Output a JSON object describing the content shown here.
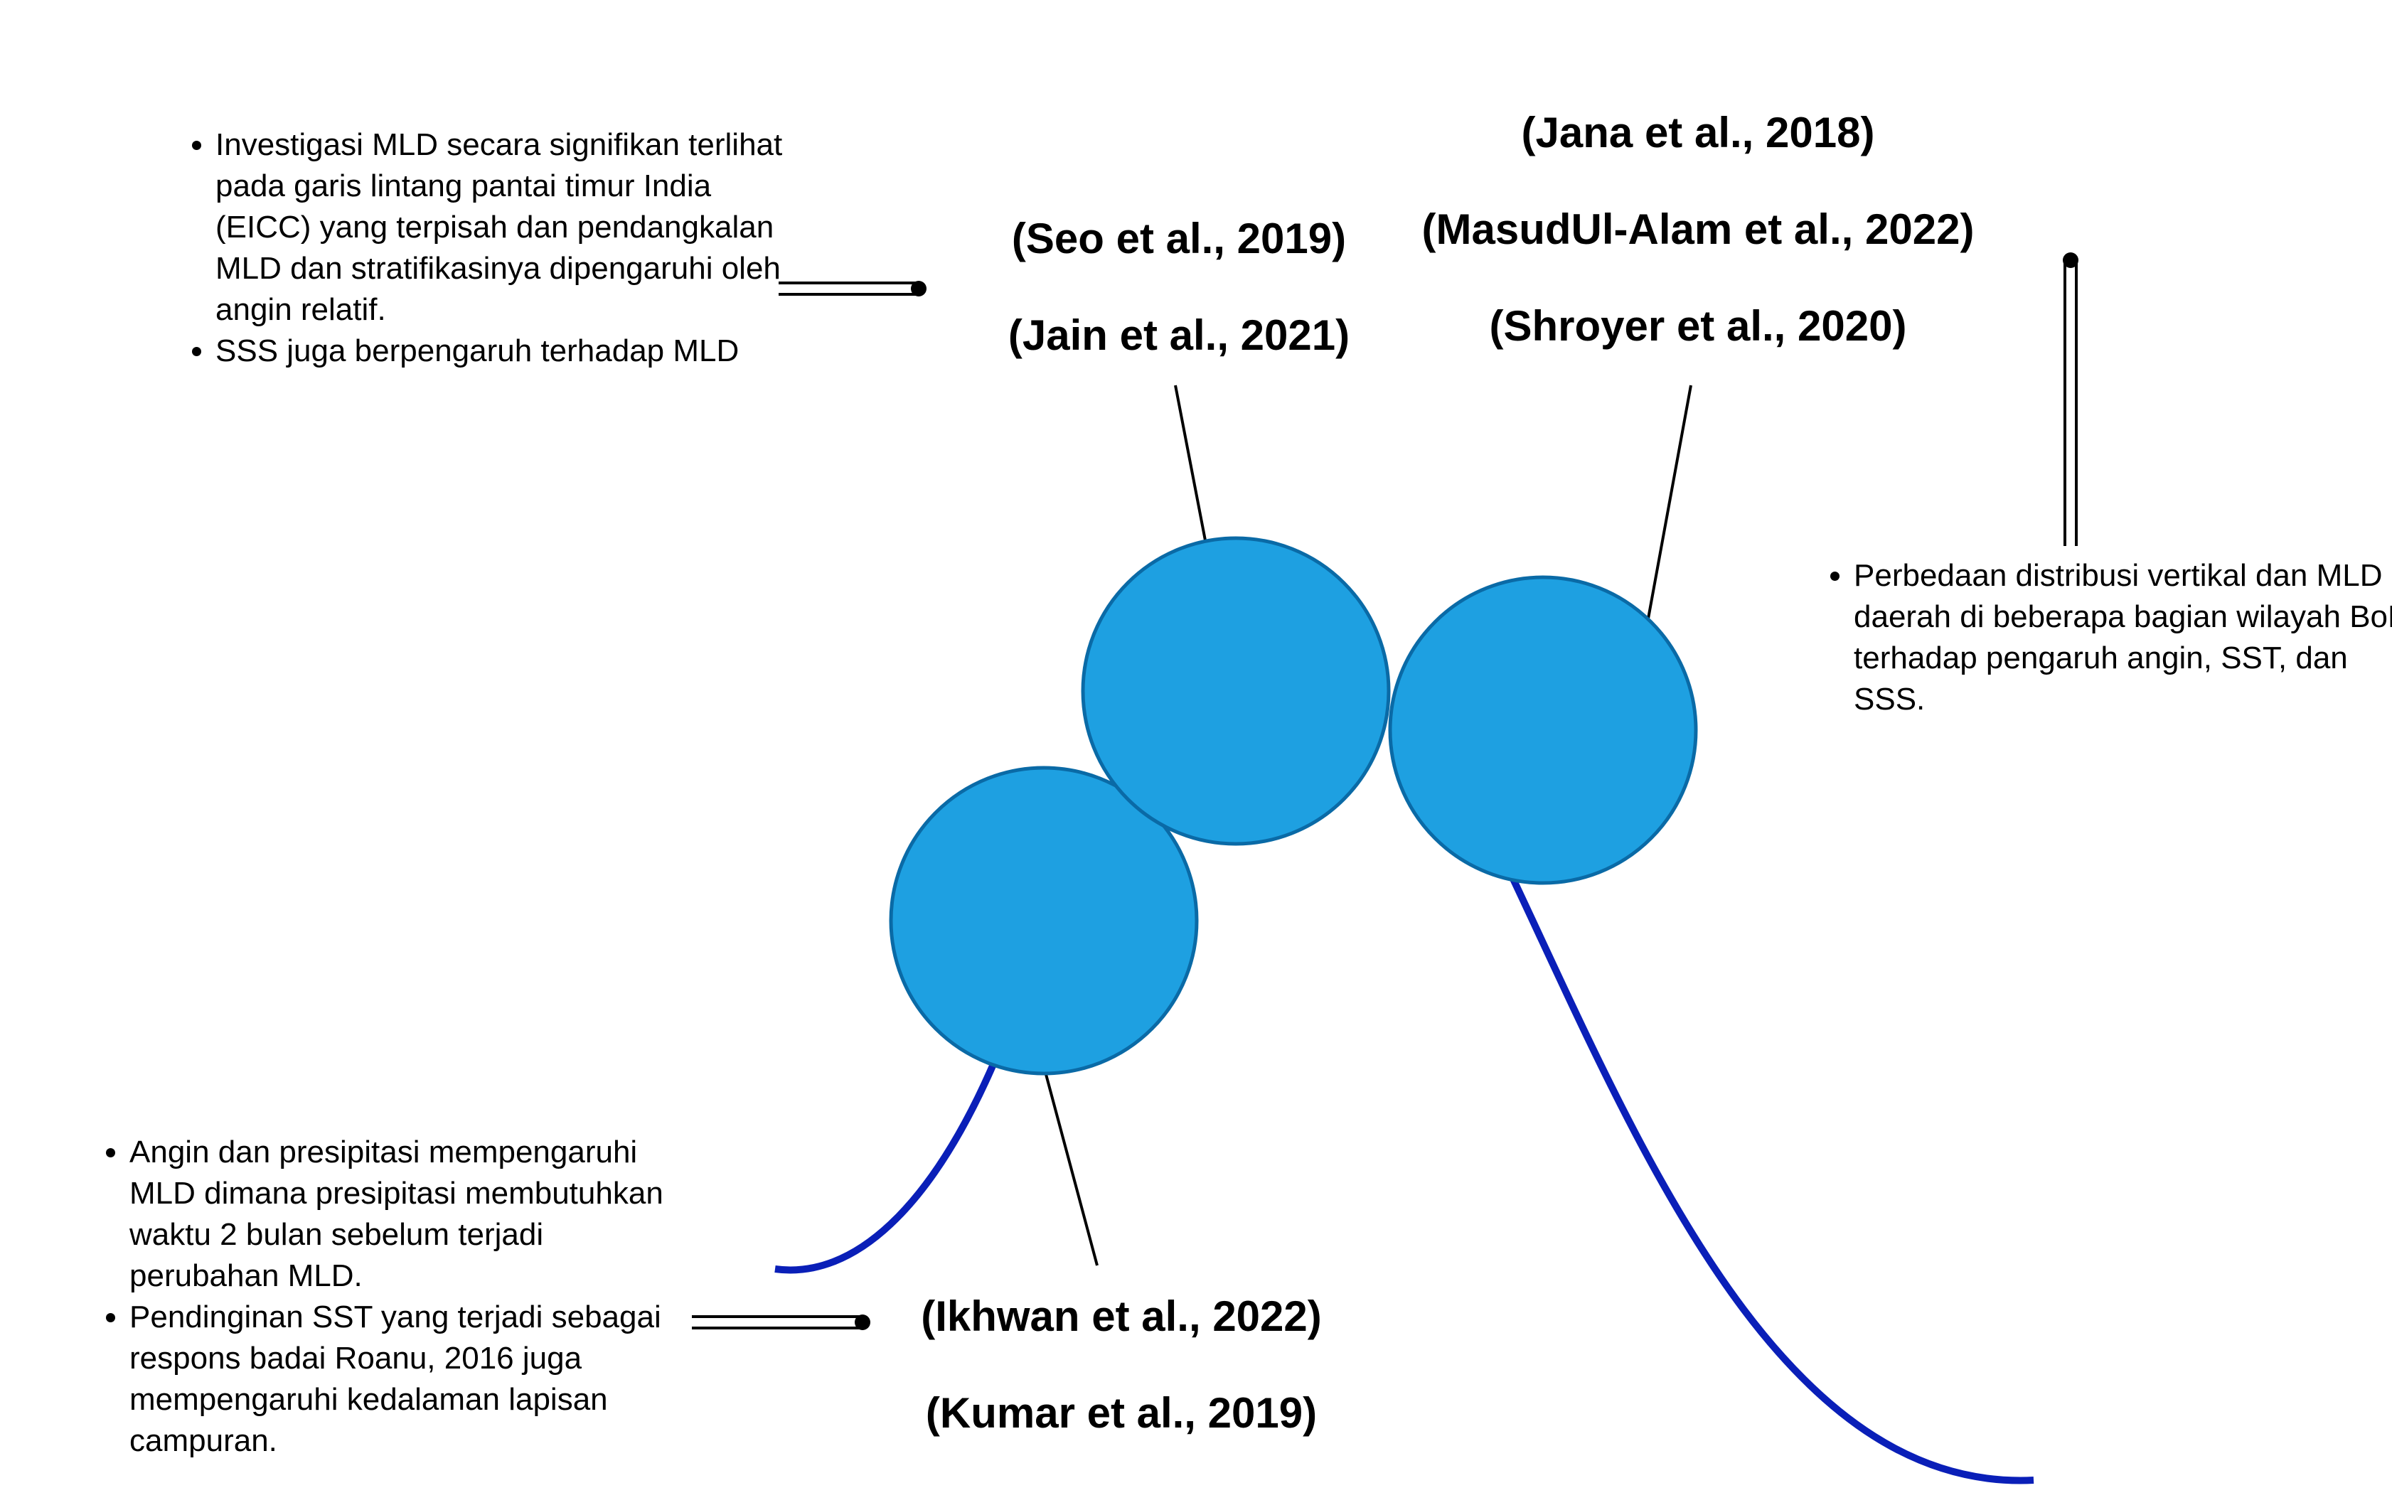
{
  "colors": {
    "circle_fill": "#1ea0e1",
    "circle_stroke": "#0a6aa6",
    "curve": "#0a1fb8",
    "connector": "#000000",
    "background": "#ffffff"
  },
  "top_center_citations": [
    "(Seo et al., 2019)",
    "(Jain et al., 2021)"
  ],
  "top_right_citations": [
    "(Jana et al., 2018)",
    "(MasudUl-Alam et al., 2022)",
    "(Shroyer et al., 2020)"
  ],
  "bottom_citations": [
    "(Ikhwan et al., 2022)",
    "(Kumar et al., 2019)"
  ],
  "top_left_notes": [
    "Investigasi MLD secara signifikan terlihat pada garis lintang pantai timur India (EICC) yang terpisah dan pendangkalan MLD dan stratifikasinya dipengaruhi oleh angin relatif.",
    "SSS juga berpengaruh terhadap MLD"
  ],
  "right_notes": [
    "Perbedaan distribusi vertikal dan MLD di daerah di beberapa bagian wilayah BoB terhadap pengaruh angin, SST, dan SSS."
  ],
  "bottom_left_notes": [
    "Angin dan presipitasi mempengaruhi MLD dimana presipitasi membutuhkan waktu 2 bulan sebelum terjadi perubahan MLD.",
    "Pendinginan SST yang terjadi sebagai respons badai Roanu, 2016 juga mempengaruhi kedalaman lapisan campuran."
  ]
}
